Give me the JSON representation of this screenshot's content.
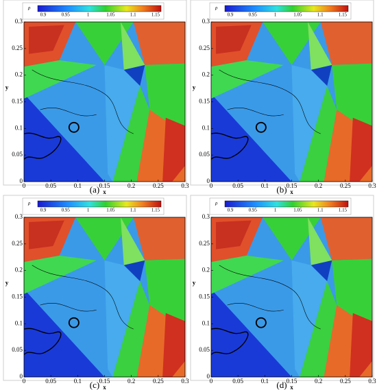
{
  "panels": [
    {
      "label": "(a)",
      "colorbar": {
        "title": "ρ",
        "ticks": [
          "0.9",
          "0.95",
          "1",
          "1.05",
          "1.1",
          "1.15"
        ]
      },
      "x_axis": {
        "title": "x",
        "ticks": [
          "0",
          "0.05",
          "0.1",
          "0.15",
          "0.2",
          "0.25",
          "0.3"
        ]
      },
      "y_axis": {
        "title": "y",
        "ticks": [
          "0",
          "0.05",
          "0.1",
          "0.15",
          "0.2",
          "0.25",
          "0.3"
        ]
      }
    },
    {
      "label": "(b)",
      "colorbar": {
        "title": "ρ",
        "ticks": [
          "0.9",
          "0.95",
          "1",
          "1.05",
          "1.1",
          "1.15"
        ]
      },
      "x_axis": {
        "title": "x",
        "ticks": [
          "0",
          "0.05",
          "0.1",
          "0.15",
          "0.2",
          "0.25",
          "0.3"
        ]
      },
      "y_axis": {
        "title": "y",
        "ticks": [
          "0",
          "0.05",
          "0.1",
          "0.15",
          "0.2",
          "0.25",
          "0.3"
        ]
      }
    },
    {
      "label": "(c)",
      "colorbar": {
        "title": "ρ",
        "ticks": [
          "0.9",
          "0.95",
          "1",
          "1.05",
          "1.1",
          "1.15"
        ]
      },
      "x_axis": {
        "title": "x",
        "ticks": [
          "0",
          "0.05",
          "0.1",
          "0.15",
          "0.2",
          "0.25",
          "0.3"
        ]
      },
      "y_axis": {
        "title": "y",
        "ticks": [
          "0",
          "0.05",
          "0.1",
          "0.15",
          "0.2",
          "0.25",
          "0.3"
        ]
      }
    },
    {
      "label": "(d)",
      "colorbar": {
        "title": "ρ",
        "ticks": [
          "0.9",
          "0.95",
          "1",
          "1.05",
          "1.1",
          "1.15"
        ]
      },
      "x_axis": {
        "title": "x",
        "ticks": [
          "0",
          "0.05",
          "0.1",
          "0.15",
          "0.2",
          "0.25",
          "0.3"
        ]
      },
      "y_axis": {
        "title": "y",
        "ticks": [
          "0",
          "0.05",
          "0.1",
          "0.15",
          "0.2",
          "0.25",
          "0.3"
        ]
      }
    }
  ]
}
